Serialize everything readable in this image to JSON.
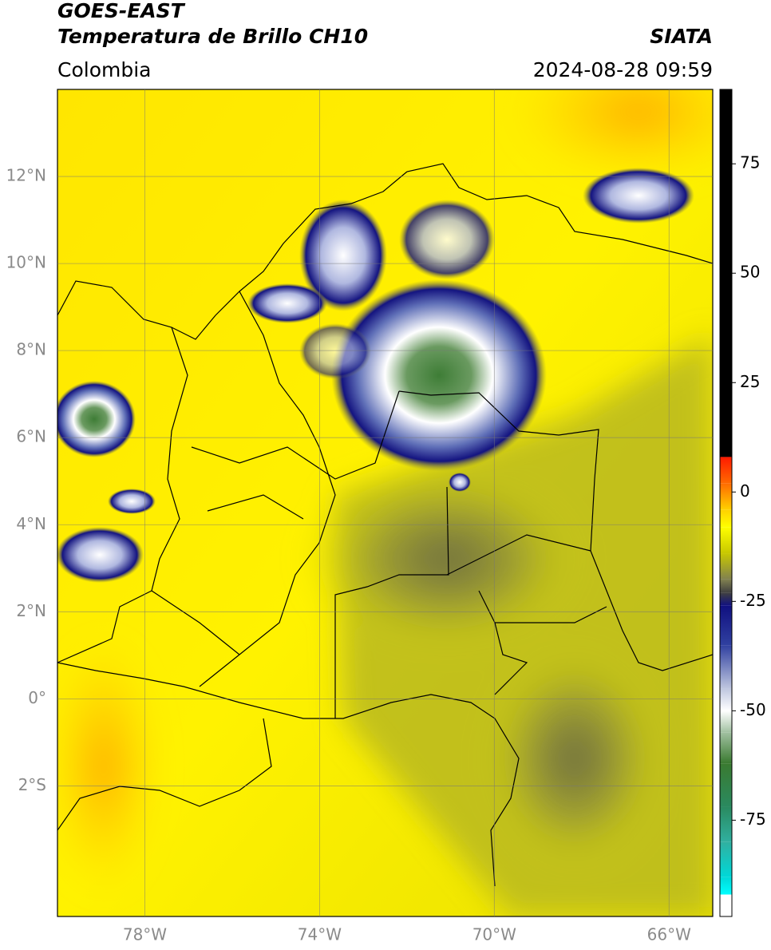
{
  "chart_data": {
    "type": "map",
    "title": "GOES-EAST",
    "subtitle": "Temperatura de Brillo CH10",
    "source": "SIATA",
    "region": "Colombia",
    "timestamp": "2024-08-28 09:59",
    "xlim": [
      -80,
      -65
    ],
    "ylim": [
      -5,
      14
    ],
    "xticks": [
      {
        "value": -78,
        "label": "78°W"
      },
      {
        "value": -74,
        "label": "74°W"
      },
      {
        "value": -70,
        "label": "70°W"
      },
      {
        "value": -66,
        "label": "66°W"
      }
    ],
    "yticks": [
      {
        "value": 12,
        "label": "12°N"
      },
      {
        "value": 10,
        "label": "10°N"
      },
      {
        "value": 8,
        "label": "8°N"
      },
      {
        "value": 6,
        "label": "6°N"
      },
      {
        "value": 4,
        "label": "4°N"
      },
      {
        "value": 2,
        "label": "2°N"
      },
      {
        "value": 0,
        "label": "0°"
      },
      {
        "value": -2,
        "label": "2°S"
      }
    ],
    "grid": true,
    "colorbar": {
      "lim": [
        -97,
        92
      ],
      "ticks": [
        75,
        50,
        25,
        0,
        -25,
        -50,
        -75
      ],
      "stops": [
        {
          "value": 92,
          "color": "#000000"
        },
        {
          "value": 8,
          "color": "#000000"
        },
        {
          "value": 8,
          "color": "#ff1a00"
        },
        {
          "value": 2,
          "color": "#ff6a00"
        },
        {
          "value": -4,
          "color": "#ffd000"
        },
        {
          "value": -8,
          "color": "#ffff00"
        },
        {
          "value": -14,
          "color": "#c8c800"
        },
        {
          "value": -20,
          "color": "#808050"
        },
        {
          "value": -23,
          "color": "#404040"
        },
        {
          "value": -26,
          "color": "#101080"
        },
        {
          "value": -35,
          "color": "#3040a0"
        },
        {
          "value": -45,
          "color": "#c0c8e0"
        },
        {
          "value": -50,
          "color": "#ffffff"
        },
        {
          "value": -55,
          "color": "#a0c0a0"
        },
        {
          "value": -62,
          "color": "#3a7a30"
        },
        {
          "value": -72,
          "color": "#2a8a60"
        },
        {
          "value": -80,
          "color": "#30b0a0"
        },
        {
          "value": -88,
          "color": "#00d8d8"
        },
        {
          "value": -92,
          "color": "#00ffff"
        },
        {
          "value": -92,
          "color": "#ffffff"
        },
        {
          "value": -97,
          "color": "#ffffff"
        }
      ]
    }
  }
}
